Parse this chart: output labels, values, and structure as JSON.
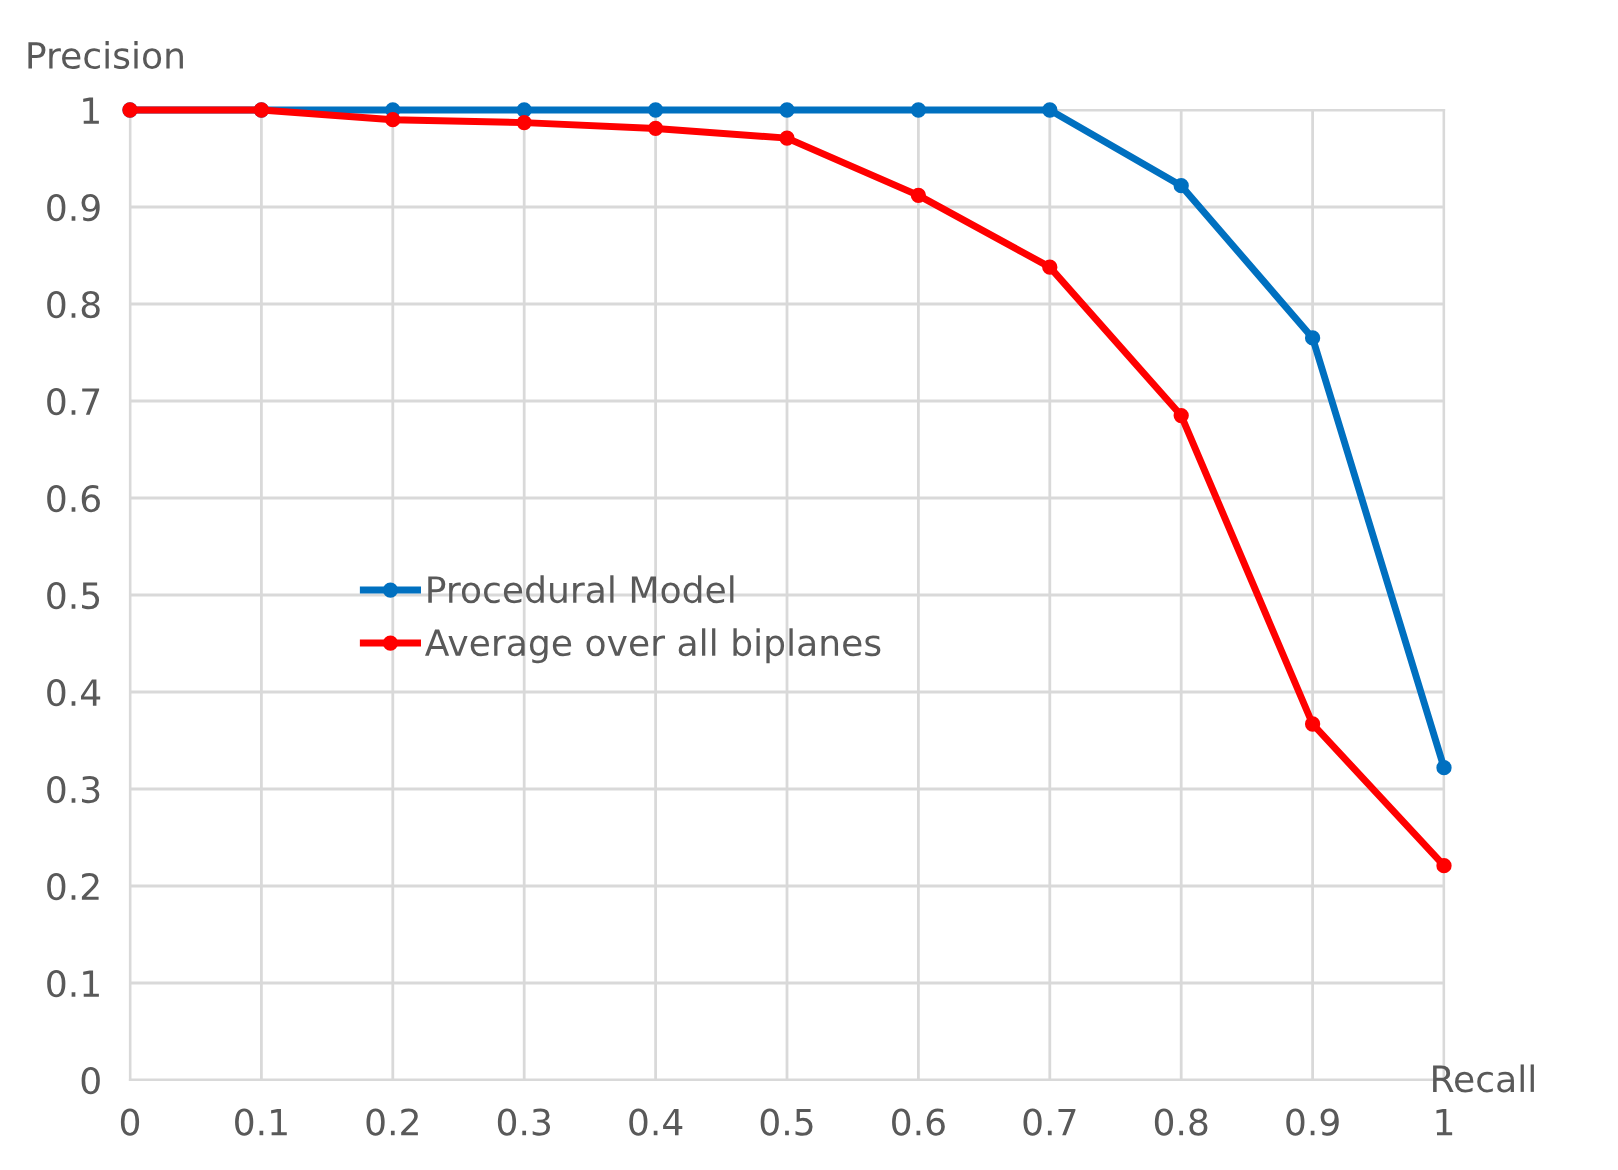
{
  "chart_data": {
    "type": "line",
    "xlabel": "Recall",
    "ylabel": "Precision",
    "x": [
      0,
      0.1,
      0.2,
      0.3,
      0.4,
      0.5,
      0.6,
      0.7,
      0.8,
      0.9,
      1
    ],
    "series": [
      {
        "name": "Procedural Model",
        "color": "#0070c0",
        "values": [
          1,
          1,
          1,
          1,
          1,
          1,
          1,
          1,
          0.922,
          0.765,
          0.322
        ]
      },
      {
        "name": "Average over all biplanes",
        "color": "#ff0000",
        "values": [
          1,
          1,
          0.99,
          0.987,
          0.981,
          0.971,
          0.912,
          0.838,
          0.685,
          0.367,
          0.221
        ]
      }
    ],
    "xlim": [
      0,
      1
    ],
    "ylim": [
      0,
      1
    ],
    "xticks": [
      0,
      0.1,
      0.2,
      0.3,
      0.4,
      0.5,
      0.6,
      0.7,
      0.8,
      0.9,
      1
    ],
    "yticks": [
      0,
      0.1,
      0.2,
      0.3,
      0.4,
      0.5,
      0.6,
      0.7,
      0.8,
      0.9,
      1
    ],
    "grid": true,
    "legend": "center",
    "marker": "circle",
    "line_style": "solid"
  }
}
